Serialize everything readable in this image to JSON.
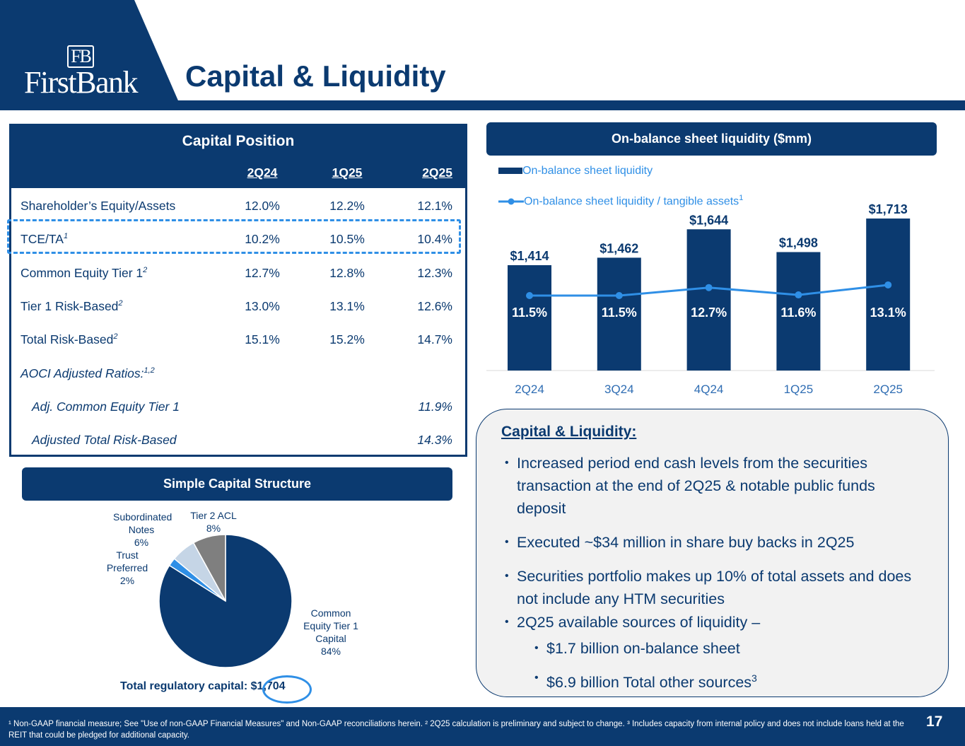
{
  "header": {
    "logo_monogram": "FB",
    "logo_name": "FirstBank",
    "title": "Capital & Liquidity"
  },
  "capital_position": {
    "title": "Capital Position",
    "columns": [
      "2Q24",
      "1Q25",
      "2Q25"
    ],
    "rows": [
      {
        "label": "Shareholder’s Equity/Assets",
        "sup": "",
        "values": [
          "12.0%",
          "12.2%",
          "12.1%"
        ]
      },
      {
        "label": "TCE/TA",
        "sup": "1",
        "values": [
          "10.2%",
          "10.5%",
          "10.4%"
        ]
      },
      {
        "label": "Common Equity Tier 1",
        "sup": "2",
        "values": [
          "12.7%",
          "12.8%",
          "12.3%"
        ]
      },
      {
        "label": "Tier 1 Risk-Based",
        "sup": "2",
        "values": [
          "13.0%",
          "13.1%",
          "12.6%"
        ]
      },
      {
        "label": "Total Risk-Based",
        "sup": "2",
        "values": [
          "15.1%",
          "15.2%",
          "14.7%"
        ]
      },
      {
        "label": "AOCI Adjusted Ratios:",
        "sup": "1,2",
        "values": [
          "",
          "",
          ""
        ]
      },
      {
        "label": "Adj. Common Equity Tier 1",
        "sup": "",
        "values": [
          "",
          "",
          "11.9%"
        ]
      },
      {
        "label": "Adjusted Total Risk-Based",
        "sup": "",
        "values": [
          "",
          "",
          "14.3%"
        ]
      }
    ]
  },
  "simple_capital": {
    "title": "Simple Capital Structure",
    "total_label": "Total regulatory capital:",
    "total_value": "$1,704"
  },
  "liquidity": {
    "title": "On-balance sheet liquidity ($mm)"
  },
  "commentary": {
    "title": "Capital & Liquidity:",
    "bullets": [
      "Increased period end cash levels from the securities transaction at the end of 2Q25 & notable public funds deposit",
      "Executed ~$34 million in share buy backs in 2Q25",
      "Securities portfolio makes up 10% of total assets and does not include any HTM securities",
      "2Q25 available sources of liquidity –"
    ],
    "sub_bullets": [
      "$1.7 billion on-balance sheet",
      "$6.9 billion Total other sources"
    ],
    "sub_bullet_sup": "3"
  },
  "footer": {
    "footnote": "¹ Non-GAAP financial measure; See \"Use of non-GAAP Financial Measures\" and Non-GAAP reconciliations herein. ² 2Q25 calculation is preliminary and subject to change. ³ Includes capacity from internal policy and does not include loans held at the REIT that could be pledged for additional capacity.",
    "page": "17"
  },
  "chart_data": [
    {
      "type": "bar",
      "title": "On-balance sheet liquidity ($mm)",
      "categories": [
        "2Q24",
        "3Q24",
        "4Q24",
        "1Q25",
        "2Q25"
      ],
      "series": [
        {
          "name": "On-balance sheet liquidity",
          "type": "bar",
          "values": [
            1414,
            1462,
            1644,
            1498,
            1713
          ],
          "labels": [
            "$1,414",
            "$1,462",
            "$1,644",
            "$1,498",
            "$1,713"
          ],
          "color": "#0b3a70"
        },
        {
          "name": "On-balance sheet liquidity / tangible assets",
          "name_sup": "1",
          "type": "line",
          "values": [
            11.5,
            11.5,
            12.7,
            11.6,
            13.1
          ],
          "labels": [
            "11.5%",
            "11.5%",
            "12.7%",
            "11.6%",
            "13.1%"
          ],
          "color": "#2f8fe6"
        }
      ],
      "legend": "top-left",
      "grid": false
    },
    {
      "type": "pie",
      "slices": [
        {
          "label": "Common Equity Tier 1 Capital",
          "value": 84,
          "text": "84%",
          "color": "#0b3a70"
        },
        {
          "label": "Trust Preferred",
          "value": 2,
          "text": "2%",
          "color": "#2f8fe6"
        },
        {
          "label": "Subordinated Notes",
          "value": 6,
          "text": "6%",
          "color": "#c5d5e6"
        },
        {
          "label": "Tier 2 ACL",
          "value": 8,
          "text": "8%",
          "color": "#7f7f7f"
        }
      ]
    }
  ]
}
